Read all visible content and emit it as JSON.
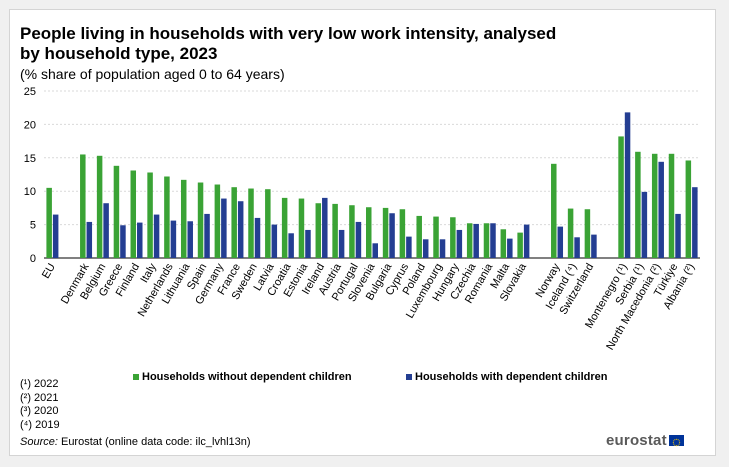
{
  "colors": {
    "without": "#3aa335",
    "with": "#243e92",
    "grid": "#d9d9d9",
    "logo": "#5a5a5a",
    "flag": "#003399",
    "flag_stars": "#ffcc00"
  },
  "chart_data": {
    "type": "bar",
    "title": "People living in households with very low work intensity, analysed by household type, 2023",
    "subtitle": "(% share of population aged 0 to 64 years)",
    "ylim": [
      0,
      25
    ],
    "yticks": [
      "0",
      "5",
      "10",
      "15",
      "20",
      "25"
    ],
    "grid": true,
    "legend_position": "bottom",
    "categories": [
      "EU",
      "Denmark",
      "Belgium",
      "Greece",
      "Finland",
      "Italy",
      "Netherlands",
      "Lithuania",
      "Spain",
      "Germany",
      "France",
      "Sweden",
      "Latvia",
      "Croatia",
      "Estonia",
      "Ireland",
      "Austria",
      "Portugal",
      "Slovenia",
      "Bulgaria",
      "Cyprus",
      "Poland",
      "Luxembourg",
      "Hungary",
      "Czechia",
      "Romania",
      "Malta",
      "Slovakia",
      "Norway",
      "Iceland (⁴)",
      "Switzerland",
      "Montenegro (¹)",
      "Serbia (¹)",
      "North Macedonia (²)",
      "Türkiye",
      "Albania (²)"
    ],
    "series": [
      {
        "name": "Households without dependent children",
        "values": [
          10.5,
          15.5,
          15.3,
          13.8,
          13.1,
          12.8,
          12.2,
          11.7,
          11.3,
          11.0,
          10.6,
          10.4,
          10.3,
          9.0,
          8.9,
          8.2,
          8.1,
          7.9,
          7.6,
          7.5,
          7.3,
          6.3,
          6.2,
          6.1,
          5.2,
          5.2,
          4.3,
          3.8,
          14.1,
          7.4,
          7.3,
          18.2,
          15.9,
          15.6,
          15.6,
          14.6
        ]
      },
      {
        "name": "Households with dependent children",
        "values": [
          6.5,
          5.4,
          8.2,
          4.9,
          5.3,
          6.5,
          5.6,
          5.5,
          6.6,
          8.9,
          8.5,
          6.0,
          5.0,
          3.7,
          4.2,
          9.0,
          4.2,
          5.4,
          2.2,
          6.7,
          3.2,
          2.8,
          2.8,
          4.2,
          5.1,
          5.2,
          2.9,
          5.0,
          4.7,
          3.1,
          3.5,
          21.8,
          9.9,
          14.4,
          6.6,
          10.6
        ]
      }
    ]
  },
  "legend": {
    "without_label": "Households without dependent children",
    "with_label": "Households with dependent children"
  },
  "notes": [
    "(¹) 2022",
    "(²) 2021",
    "(³) 2020",
    "(⁴) 2019"
  ],
  "source": {
    "label": "Source:",
    "text": " Eurostat (online data code: ilc_lvhl13n)"
  },
  "logo": {
    "text": "eurostat"
  }
}
